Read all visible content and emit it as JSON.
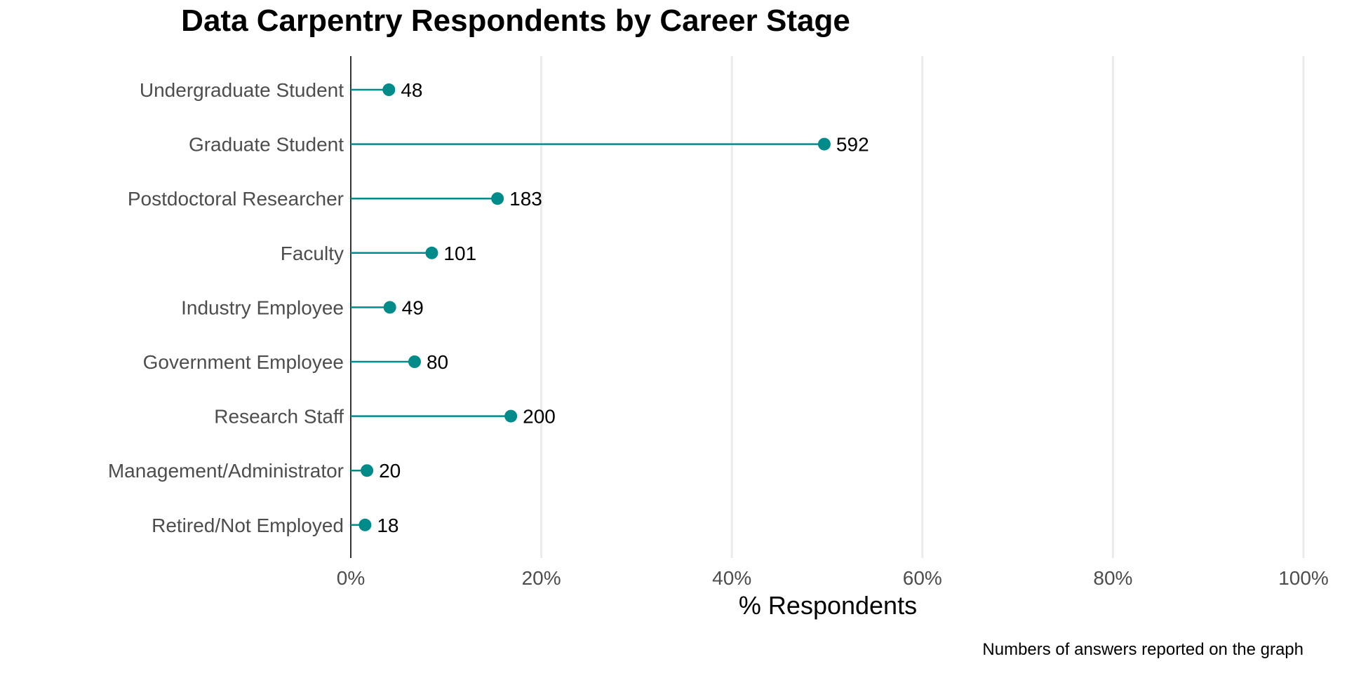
{
  "chart_data": {
    "type": "lollipop",
    "title": "Data Carpentry Respondents by Career Stage",
    "xlabel": "% Respondents",
    "ylabel": "",
    "caption": "Numbers of answers reported on the graph",
    "categories": [
      "Undergraduate Student",
      "Graduate Student",
      "Postdoctoral Researcher",
      "Faculty",
      "Industry Employee",
      "Government Employee",
      "Research Staff",
      "Management/Administrator",
      "Retired/Not Employed"
    ],
    "counts": [
      48,
      592,
      183,
      101,
      49,
      80,
      200,
      20,
      18
    ],
    "percent": [
      4.0,
      49.7,
      15.4,
      8.5,
      4.1,
      6.7,
      16.8,
      1.7,
      1.5
    ],
    "xlim": [
      0,
      100
    ],
    "xticks": [
      0,
      20,
      40,
      60,
      80,
      100
    ],
    "xtick_labels": [
      "0%",
      "20%",
      "40%",
      "60%",
      "80%",
      "100%"
    ],
    "grid": "vertical-major",
    "color": "#008b8b"
  }
}
